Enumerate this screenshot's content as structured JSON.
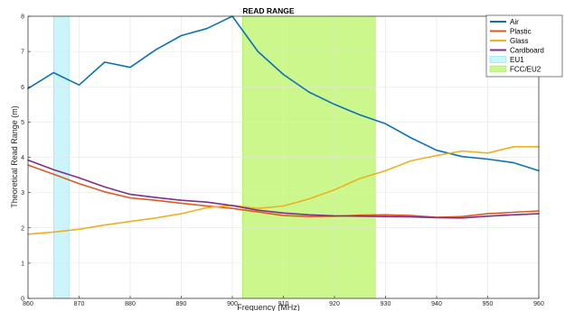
{
  "chart_data": {
    "type": "line",
    "title": "READ RANGE",
    "xlabel": "Frequency (MHz)",
    "ylabel": "Theoretical Read Range (m)",
    "xlim": [
      860,
      960
    ],
    "ylim": [
      0,
      8
    ],
    "xticks": [
      "860",
      "870",
      "880",
      "890",
      "900",
      "910",
      "920",
      "930",
      "940",
      "950",
      "960"
    ],
    "yticks": [
      "0",
      "1",
      "2",
      "3",
      "4",
      "5",
      "6",
      "7",
      "8"
    ],
    "grid": true,
    "legend_position": "top-right",
    "bands": [
      {
        "name": "EU1",
        "x_start": 865,
        "x_end": 868,
        "color": "#ccf5fb",
        "edge": "#7fe3f0"
      },
      {
        "name": "FCC/EU2",
        "x_start": 902,
        "x_end": 928,
        "color": "#ccf78c",
        "edge": "#a8e85a"
      }
    ],
    "series": [
      {
        "name": "Air",
        "color": "#0c72b5",
        "x": [
          860,
          865,
          870,
          875,
          880,
          885,
          890,
          895,
          900,
          905,
          910,
          915,
          920,
          925,
          930,
          935,
          940,
          945,
          950,
          955,
          960
        ],
        "y": [
          5.95,
          6.4,
          6.05,
          6.7,
          6.55,
          7.05,
          7.45,
          7.65,
          8.0,
          7.0,
          6.35,
          5.85,
          5.5,
          5.2,
          4.95,
          4.55,
          4.2,
          4.02,
          3.95,
          3.85,
          3.62
        ]
      },
      {
        "name": "Plastic",
        "color": "#dd5a1e",
        "x": [
          860,
          865,
          870,
          875,
          880,
          885,
          890,
          895,
          900,
          905,
          910,
          915,
          920,
          925,
          930,
          935,
          940,
          945,
          950,
          955,
          960
        ],
        "y": [
          3.78,
          3.52,
          3.25,
          3.02,
          2.85,
          2.78,
          2.7,
          2.62,
          2.55,
          2.45,
          2.35,
          2.32,
          2.33,
          2.36,
          2.37,
          2.35,
          2.3,
          2.32,
          2.4,
          2.44,
          2.48
        ]
      },
      {
        "name": "Glass",
        "color": "#edb120",
        "x": [
          860,
          865,
          870,
          875,
          880,
          885,
          890,
          895,
          900,
          905,
          910,
          915,
          920,
          925,
          930,
          935,
          940,
          945,
          950,
          955,
          960
        ],
        "y": [
          1.82,
          1.88,
          1.96,
          2.08,
          2.18,
          2.28,
          2.4,
          2.57,
          2.64,
          2.55,
          2.62,
          2.82,
          3.08,
          3.4,
          3.62,
          3.9,
          4.05,
          4.18,
          4.12,
          4.3,
          4.3
        ]
      },
      {
        "name": "Cardboard",
        "color": "#7e2f8e",
        "x": [
          860,
          865,
          870,
          875,
          880,
          885,
          890,
          895,
          900,
          905,
          910,
          915,
          920,
          925,
          930,
          935,
          940,
          945,
          950,
          955,
          960
        ],
        "y": [
          3.92,
          3.65,
          3.42,
          3.16,
          2.95,
          2.86,
          2.78,
          2.73,
          2.63,
          2.5,
          2.42,
          2.37,
          2.34,
          2.33,
          2.32,
          2.31,
          2.29,
          2.28,
          2.33,
          2.37,
          2.4
        ]
      }
    ]
  }
}
